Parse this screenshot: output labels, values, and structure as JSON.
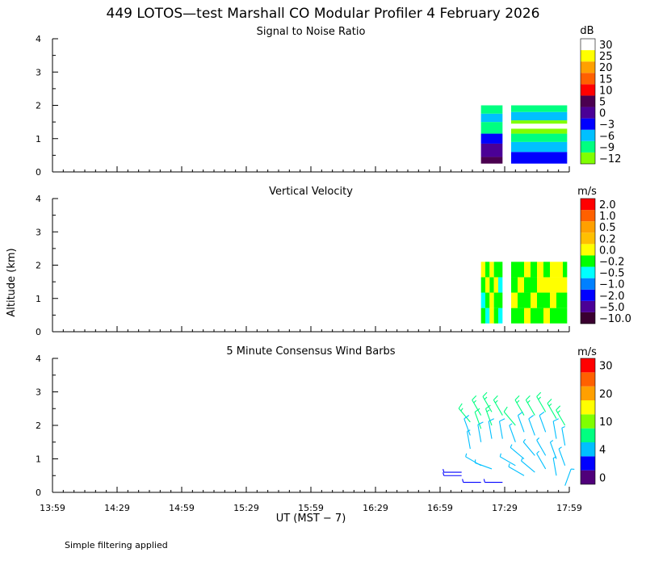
{
  "header": {
    "title": "449 LOTOS—test Marshall CO Modular Profiler  4 February 2026"
  },
  "footer": {
    "note": "Simple filtering applied"
  },
  "colors": {
    "snr": [
      "#80ff00",
      "#00ff80",
      "#00c0ff",
      "#0000ff",
      "#4b0096",
      "#4b0050",
      "#ff0000",
      "#ff6000",
      "#ffa000",
      "#ffff00",
      "#ffffff"
    ],
    "vel": [
      "#3a0030",
      "#4b0096",
      "#0000ff",
      "#0080ff",
      "#00ffff",
      "#00ff00",
      "#ffff00",
      "#ffc000",
      "#ffa000",
      "#ff6000",
      "#ff0000"
    ],
    "wind": [
      "#50007a",
      "#0000ff",
      "#00c0ff",
      "#00ff80",
      "#80ff00",
      "#ffff00",
      "#ffa000",
      "#ff6000",
      "#ff0000"
    ]
  },
  "chart_data": [
    {
      "type": "heatmap",
      "title": "Signal to Noise Ratio",
      "ylabel": "",
      "xlabel": "",
      "xlim": [
        "13:59",
        "17:59"
      ],
      "ylim": [
        0,
        4
      ],
      "y_ticks": [
        "0",
        "1",
        "2",
        "3",
        "4"
      ],
      "colorbar": {
        "unit": "dB",
        "labels": [
          "−12",
          "−9",
          "−6",
          "−3",
          "0",
          "5",
          "10",
          "15",
          "20",
          "25",
          "30"
        ]
      },
      "blocks": [
        {
          "t_start": "17:18",
          "t_end": "17:28",
          "z_bottom": 0.25,
          "z_top": 2.0,
          "layers": [
            {
              "z": [
                0.25,
                0.45
              ],
              "dB": 3
            },
            {
              "z": [
                0.45,
                0.85
              ],
              "dB": 2
            },
            {
              "z": [
                0.85,
                1.15
              ],
              "dB": -3
            },
            {
              "z": [
                1.15,
                1.5
              ],
              "dB": -10
            },
            {
              "z": [
                1.5,
                1.75
              ],
              "dB": -5
            },
            {
              "z": [
                1.75,
                2.0
              ],
              "dB": -10
            }
          ]
        },
        {
          "t_start": "17:32",
          "t_end": "17:58",
          "z_bottom": 0.25,
          "z_top": 2.0,
          "layers": [
            {
              "z": [
                0.25,
                0.6
              ],
              "dB": -2
            },
            {
              "z": [
                0.6,
                0.9
              ],
              "dB": -5
            },
            {
              "z": [
                0.9,
                1.15
              ],
              "dB": -9
            },
            {
              "z": [
                1.15,
                1.3
              ],
              "dB": -11
            },
            {
              "z": [
                1.3,
                1.45
              ],
              "dB": 31
            },
            {
              "z": [
                1.45,
                1.55
              ],
              "dB": -11
            },
            {
              "z": [
                1.55,
                1.8
              ],
              "dB": -5
            },
            {
              "z": [
                1.8,
                2.0
              ],
              "dB": -10
            }
          ]
        }
      ]
    },
    {
      "type": "heatmap",
      "title": "Vertical Velocity",
      "ylabel": "Altitude (km)",
      "xlabel": "",
      "xlim": [
        "13:59",
        "17:59"
      ],
      "ylim": [
        0,
        4
      ],
      "y_ticks": [
        "0",
        "1",
        "2",
        "3",
        "4"
      ],
      "colorbar": {
        "unit": "m/s",
        "labels": [
          "−10.0",
          "−5.0",
          "−2.0",
          "−1.0",
          "−0.5",
          "−0.2",
          "0.0",
          "0.2",
          "0.5",
          "1.0",
          "2.0"
        ]
      },
      "blocks": [
        {
          "t_start": "17:18",
          "t_end": "17:28",
          "z_bottom": 0.25,
          "z_top": 2.1,
          "columns": [
            {
              "t": [
                "17:18",
                "17:20"
              ],
              "ms": [
                -0.2,
                -0.5,
                -0.2,
                0.0
              ]
            },
            {
              "t": [
                "17:20",
                "17:22"
              ],
              "ms": [
                -0.5,
                -0.2,
                0.0,
                -0.2
              ]
            },
            {
              "t": [
                "17:22",
                "17:24"
              ],
              "ms": [
                0.0,
                0.0,
                -0.2,
                0.0
              ]
            },
            {
              "t": [
                "17:24",
                "17:26"
              ],
              "ms": [
                -0.2,
                -0.2,
                0.0,
                -0.2
              ]
            },
            {
              "t": [
                "17:26",
                "17:28"
              ],
              "ms": [
                -0.5,
                -0.2,
                -0.5,
                -0.2
              ]
            }
          ]
        },
        {
          "t_start": "17:32",
          "t_end": "17:58",
          "z_bottom": 0.25,
          "z_top": 2.1,
          "columns": [
            {
              "t": [
                "17:32",
                "17:35"
              ],
              "ms": [
                -0.2,
                0.0,
                -0.2,
                -0.2
              ]
            },
            {
              "t": [
                "17:35",
                "17:38"
              ],
              "ms": [
                -0.2,
                -0.2,
                0.0,
                -0.2
              ]
            },
            {
              "t": [
                "17:38",
                "17:41"
              ],
              "ms": [
                0.0,
                -0.2,
                -0.2,
                0.0
              ]
            },
            {
              "t": [
                "17:41",
                "17:44"
              ],
              "ms": [
                -0.2,
                0.0,
                -0.2,
                -0.2
              ]
            },
            {
              "t": [
                "17:44",
                "17:47"
              ],
              "ms": [
                -0.2,
                -0.2,
                0.0,
                0.0
              ]
            },
            {
              "t": [
                "17:47",
                "17:50"
              ],
              "ms": [
                0.0,
                -0.2,
                0.0,
                -0.2
              ]
            },
            {
              "t": [
                "17:50",
                "17:53"
              ],
              "ms": [
                -0.2,
                0.0,
                0.0,
                0.0
              ]
            },
            {
              "t": [
                "17:53",
                "17:56"
              ],
              "ms": [
                -0.2,
                -0.2,
                0.0,
                0.0
              ]
            },
            {
              "t": [
                "17:56",
                "17:58"
              ],
              "ms": [
                -0.2,
                -0.2,
                0.0,
                -0.2
              ]
            }
          ]
        }
      ]
    },
    {
      "type": "scatter",
      "title": "5 Minute Consensus Wind Barbs",
      "ylabel": "",
      "xlabel": "UT  (MST − 7)",
      "xlim": [
        "13:59",
        "17:59"
      ],
      "ylim": [
        0,
        4
      ],
      "x_ticks": [
        "13:59",
        "14:29",
        "14:59",
        "15:29",
        "15:59",
        "16:29",
        "16:59",
        "17:29",
        "17:59"
      ],
      "y_ticks": [
        "0",
        "1",
        "2",
        "3",
        "4"
      ],
      "colorbar": {
        "unit": "m/s",
        "labels": [
          "0",
          "4",
          "10",
          "20",
          "30"
        ]
      },
      "barbs": [
        {
          "t": "17:09",
          "z": 0.6,
          "speed": 3,
          "dir": 270
        },
        {
          "t": "17:09",
          "z": 0.5,
          "speed": 3,
          "dir": 270
        },
        {
          "t": "17:13",
          "z": 2.1,
          "speed": 8,
          "dir": 320
        },
        {
          "t": "17:13",
          "z": 1.7,
          "speed": 5,
          "dir": 340
        },
        {
          "t": "17:13",
          "z": 1.3,
          "speed": 4,
          "dir": 350
        },
        {
          "t": "17:18",
          "z": 2.3,
          "speed": 9,
          "dir": 330
        },
        {
          "t": "17:18",
          "z": 1.9,
          "speed": 7,
          "dir": 340
        },
        {
          "t": "17:18",
          "z": 1.5,
          "speed": 5,
          "dir": 350
        },
        {
          "t": "17:18",
          "z": 0.8,
          "speed": 4,
          "dir": 300
        },
        {
          "t": "17:18",
          "z": 0.3,
          "speed": 3,
          "dir": 270
        },
        {
          "t": "17:23",
          "z": 2.4,
          "speed": 9,
          "dir": 330
        },
        {
          "t": "17:23",
          "z": 2.0,
          "speed": 8,
          "dir": 340
        },
        {
          "t": "17:23",
          "z": 1.6,
          "speed": 5,
          "dir": 350
        },
        {
          "t": "17:23",
          "z": 0.7,
          "speed": 4,
          "dir": 290
        },
        {
          "t": "17:28",
          "z": 2.3,
          "speed": 9,
          "dir": 330
        },
        {
          "t": "17:28",
          "z": 1.6,
          "speed": 5,
          "dir": 350
        },
        {
          "t": "17:28",
          "z": 0.3,
          "speed": 3,
          "dir": 270
        },
        {
          "t": "17:34",
          "z": 2.0,
          "speed": 7,
          "dir": 320
        },
        {
          "t": "17:34",
          "z": 1.5,
          "speed": 4,
          "dir": 340
        },
        {
          "t": "17:34",
          "z": 0.8,
          "speed": 4,
          "dir": 300
        },
        {
          "t": "17:38",
          "z": 2.3,
          "speed": 8,
          "dir": 330
        },
        {
          "t": "17:38",
          "z": 1.8,
          "speed": 5,
          "dir": 340
        },
        {
          "t": "17:38",
          "z": 1.0,
          "speed": 4,
          "dir": 310
        },
        {
          "t": "17:38",
          "z": 0.5,
          "speed": 4,
          "dir": 300
        },
        {
          "t": "17:43",
          "z": 2.3,
          "speed": 9,
          "dir": 330
        },
        {
          "t": "17:43",
          "z": 1.7,
          "speed": 5,
          "dir": 340
        },
        {
          "t": "17:43",
          "z": 1.1,
          "speed": 4,
          "dir": 320
        },
        {
          "t": "17:43",
          "z": 0.6,
          "speed": 4,
          "dir": 310
        },
        {
          "t": "17:48",
          "z": 2.4,
          "speed": 9,
          "dir": 330
        },
        {
          "t": "17:48",
          "z": 1.8,
          "speed": 6,
          "dir": 340
        },
        {
          "t": "17:48",
          "z": 1.1,
          "speed": 4,
          "dir": 330
        },
        {
          "t": "17:48",
          "z": 0.7,
          "speed": 4,
          "dir": 330
        },
        {
          "t": "17:53",
          "z": 2.2,
          "speed": 9,
          "dir": 330
        },
        {
          "t": "17:53",
          "z": 1.6,
          "speed": 5,
          "dir": 350
        },
        {
          "t": "17:53",
          "z": 1.0,
          "speed": 4,
          "dir": 340
        },
        {
          "t": "17:53",
          "z": 0.5,
          "speed": 4,
          "dir": 350
        },
        {
          "t": "17:57",
          "z": 2.0,
          "speed": 8,
          "dir": 330
        },
        {
          "t": "17:57",
          "z": 1.4,
          "speed": 4,
          "dir": 350
        },
        {
          "t": "17:57",
          "z": 0.8,
          "speed": 4,
          "dir": 340
        },
        {
          "t": "17:57",
          "z": 0.2,
          "speed": 4,
          "dir": 20
        }
      ]
    }
  ]
}
